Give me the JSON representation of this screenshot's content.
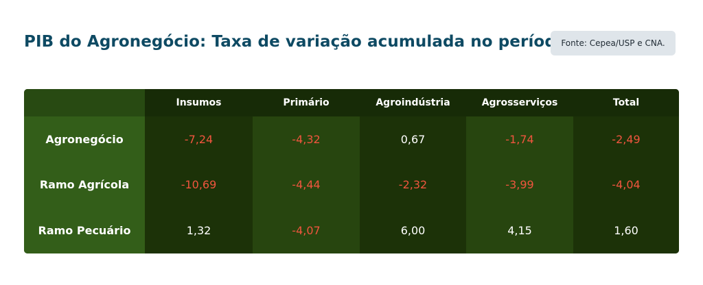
{
  "header": {
    "title": "PIB do Agronegócio: Taxa de variação acumulada no período",
    "source": "Fonte: Cepea/USP e CNA."
  },
  "colors": {
    "title": "#0e4a63",
    "negative": "#f0553e",
    "positive": "#ffffff",
    "table_bg": "#1d3309",
    "label_column": "#335e19"
  },
  "chart_data": {
    "type": "table",
    "columns": [
      "Insumos",
      "Primário",
      "Agroindústria",
      "Agrosserviços",
      "Total"
    ],
    "rows": [
      {
        "label": "Agronegócio",
        "values": [
          "-7,24",
          "-4,32",
          "0,67",
          "-1,74",
          "-2,49"
        ]
      },
      {
        "label": "Ramo Agrícola",
        "values": [
          "-10,69",
          "-4,44",
          "-2,32",
          "-3,99",
          "-4,04"
        ]
      },
      {
        "label": "Ramo Pecuário",
        "values": [
          "1,32",
          "-4,07",
          "6,00",
          "4,15",
          "1,60"
        ]
      }
    ]
  }
}
